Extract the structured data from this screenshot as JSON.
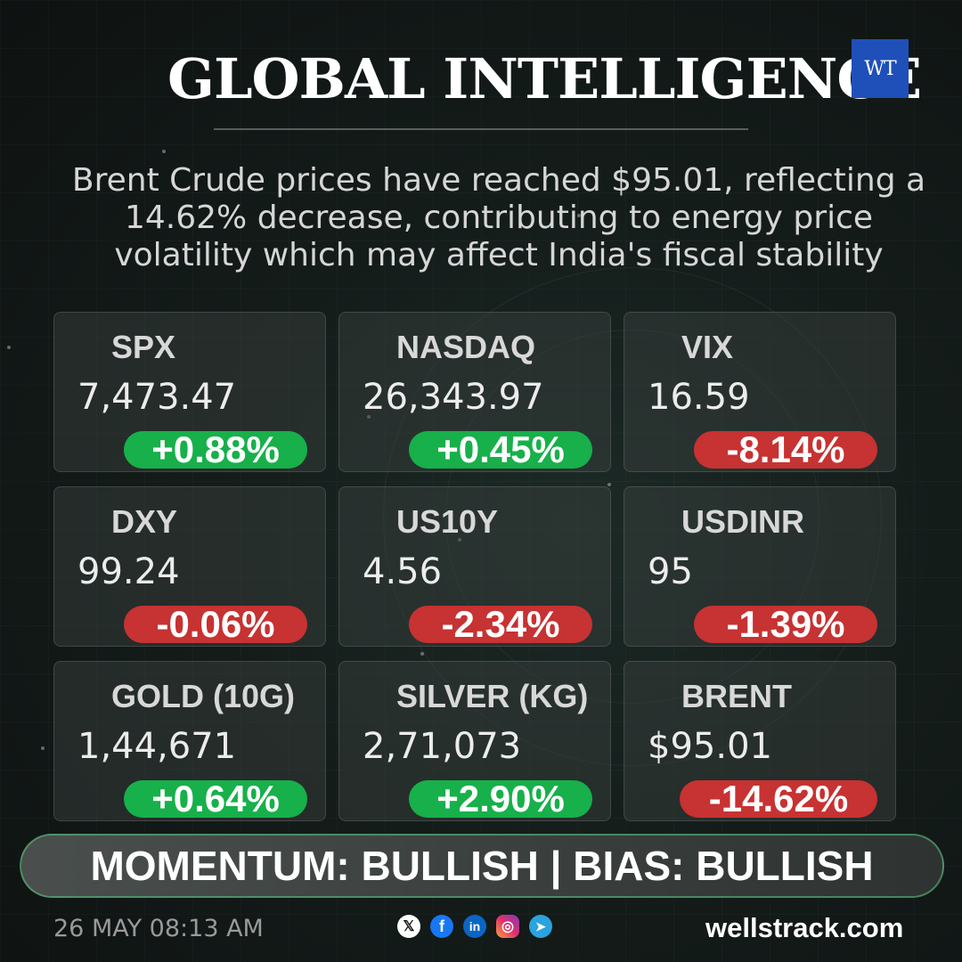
{
  "header": {
    "title": "GLOBAL INTELLIGENCE",
    "logo_text": "WT"
  },
  "headline": "Brent Crude prices have reached $95.01, reflecting a 14.62% decrease, contributing to energy price volatility which may affect India's fiscal stability",
  "tickers": [
    {
      "name": "SPX",
      "value": "7,473.47",
      "change": "+0.88%",
      "direction": "up"
    },
    {
      "name": "NASDAQ",
      "value": "26,343.97",
      "change": "+0.45%",
      "direction": "up"
    },
    {
      "name": "VIX",
      "value": "16.59",
      "change": "-8.14%",
      "direction": "down"
    },
    {
      "name": "DXY",
      "value": "99.24",
      "change": "-0.06%",
      "direction": "down"
    },
    {
      "name": "US10Y",
      "value": "4.56",
      "change": "-2.34%",
      "direction": "down"
    },
    {
      "name": "USDINR",
      "value": "95",
      "change": "-1.39%",
      "direction": "down"
    },
    {
      "name": "GOLD (10G)",
      "value": "1,44,671",
      "change": "+0.64%",
      "direction": "up"
    },
    {
      "name": "SILVER (KG)",
      "value": "2,71,073",
      "change": "+2.90%",
      "direction": "up"
    },
    {
      "name": "BRENT",
      "value": "$95.01",
      "change": "-14.62%",
      "direction": "down"
    }
  ],
  "momentum": "MOMENTUM: BULLISH | BIAS: BULLISH",
  "footer": {
    "timestamp": "26 MAY 08:13 AM",
    "website": "wellstrack.com",
    "social_icons": [
      "x-icon",
      "facebook-icon",
      "linkedin-icon",
      "instagram-icon",
      "telegram-icon"
    ]
  },
  "colors": {
    "positive": "#17b04a",
    "negative": "#c73232",
    "logo": "#1f4fb8"
  }
}
